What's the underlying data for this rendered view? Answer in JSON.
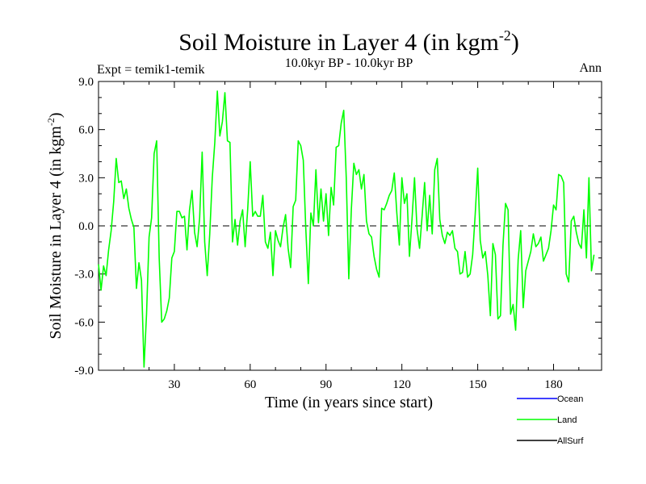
{
  "chart_data": {
    "type": "line",
    "title": "Soil Moisture in Layer 4 (in kgm",
    "title_sup": "-2",
    "title_close": ")",
    "subtitle": "10.0kyr BP - 10.0kyr BP",
    "left_note": "Expt = temik1-temik",
    "right_note": "Ann",
    "xlabel": "Time (in years since start)",
    "ylabel": "Soil Moisture in Layer 4 (in kgm",
    "ylabel_sup": "-2",
    "ylabel_close": ")",
    "xlim": [
      0,
      199
    ],
    "ylim": [
      -9,
      9
    ],
    "xticks": [
      30,
      60,
      90,
      120,
      150,
      180
    ],
    "xtick_labels": [
      "30",
      "60",
      "90",
      "120",
      "150",
      "180"
    ],
    "yticks": [
      9,
      6,
      3,
      0,
      -3,
      -6,
      -9
    ],
    "ytick_labels": [
      "9.0",
      "6.0",
      "3.0",
      "0.0",
      "-3.0",
      "-6.0",
      "-9.0"
    ],
    "zero_line": 0,
    "legend": [
      {
        "name": "Ocean",
        "color": "#0000ff"
      },
      {
        "name": "Land",
        "color": "#00ff00"
      },
      {
        "name": "AllSurf",
        "color": "#000000"
      }
    ],
    "series": [
      {
        "name": "Land",
        "color": "#00ff00",
        "x_start": 0,
        "x_step": 1,
        "values": [
          -2.4,
          -4.0,
          -2.5,
          -3.1,
          -1.5,
          -0.3,
          1.5,
          4.2,
          2.7,
          2.8,
          1.7,
          2.3,
          1.1,
          0.4,
          -0.1,
          -3.9,
          -2.3,
          -3.4,
          -8.8,
          -5.5,
          -0.7,
          0.5,
          4.5,
          5.3,
          -2.0,
          -6.0,
          -5.8,
          -5.3,
          -4.5,
          -2.0,
          -1.6,
          0.9,
          0.9,
          0.5,
          0.6,
          -1.5,
          1.0,
          2.2,
          -0.4,
          -1.3,
          0.5,
          4.6,
          -1.0,
          -3.1,
          -0.5,
          3.0,
          5.2,
          8.4,
          5.6,
          6.5,
          8.3,
          5.3,
          5.2,
          -1.0,
          0.4,
          -1.2,
          0.3,
          1.0,
          -1.3,
          1.0,
          4.0,
          0.6,
          0.9,
          0.6,
          0.6,
          1.9,
          -1.0,
          -1.4,
          -0.4,
          -3.1,
          -0.3,
          -0.9,
          -1.3,
          -0.1,
          0.7,
          -1.4,
          -2.6,
          1.2,
          1.6,
          5.3,
          5.0,
          4.1,
          -0.2,
          -3.6,
          0.8,
          0.0,
          3.5,
          0.2,
          2.3,
          0.3,
          2.0,
          -0.6,
          2.4,
          1.3,
          4.9,
          5.0,
          6.4,
          7.2,
          3.0,
          -3.3,
          1.0,
          3.9,
          3.2,
          3.5,
          2.3,
          3.2,
          0.3,
          -0.5,
          -0.7,
          -1.9,
          -2.7,
          -3.2,
          1.1,
          1.0,
          1.4,
          1.9,
          2.2,
          3.3,
          0.8,
          -1.2,
          3.0,
          1.4,
          2.0,
          -1.9,
          0.4,
          3.0,
          -0.2,
          -1.4,
          0.6,
          2.7,
          -0.3,
          1.9,
          -0.5,
          3.5,
          4.2,
          0.4,
          -0.6,
          -1.1,
          -0.4,
          -0.6,
          -0.3,
          -1.4,
          -1.6,
          -3.0,
          -2.9,
          -1.6,
          -3.2,
          -3.0,
          -1.8,
          0.7,
          3.6,
          -0.9,
          -2.0,
          -1.6,
          -3.1,
          -5.6,
          -1.1,
          -1.8,
          -5.8,
          -5.6,
          -1.2,
          1.4,
          1.0,
          -5.5,
          -4.9,
          -6.5,
          -2.1,
          -0.3,
          -5.1,
          -2.8,
          -2.2,
          -1.6,
          -0.5,
          -1.3,
          -1.1,
          -0.7,
          -2.2,
          -1.8,
          -1.4,
          -0.3,
          1.3,
          1.0,
          3.2,
          3.1,
          2.7,
          -3.0,
          -3.5,
          0.3,
          0.6,
          -0.4,
          -1.1,
          -1.4,
          1.0,
          -2.0,
          3.0,
          -2.8,
          -1.8
        ]
      }
    ]
  }
}
